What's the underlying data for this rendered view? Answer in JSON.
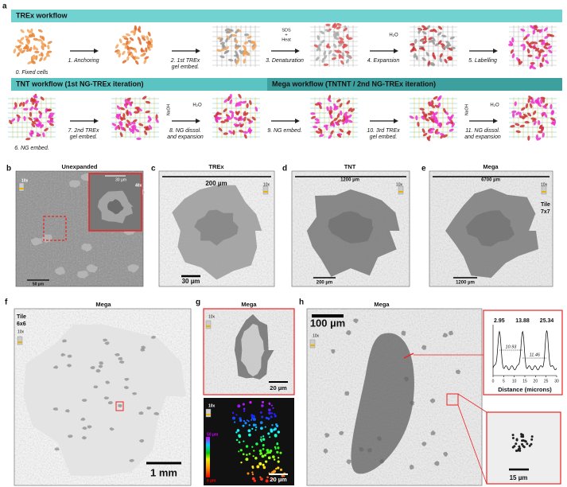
{
  "a": {
    "label": "a",
    "trex_title": "TREx workflow",
    "tnt_title": "TNT workflow (1st NG-TREx iteration)",
    "mega_title": "Mega workflow (TNTNT / 2nd NG-TREx iteration)",
    "steps": [
      [
        "0. Fixed cells"
      ],
      [
        "1. Anchoring"
      ],
      [
        "2.  1st TREx",
        "gel embed."
      ],
      [
        "3. Denaturation"
      ],
      [
        "4. Expansion"
      ],
      [
        "5. Labelling"
      ],
      [
        "6. NG embed."
      ],
      [
        "7. 2nd TREx",
        "gel embed."
      ],
      [
        "8. NG dissol.",
        "and expansion"
      ],
      [
        "9. NG embed."
      ],
      [
        "10. 3rd TREx",
        "gel embed."
      ],
      [
        "11. NG dissol.",
        "and expansion"
      ]
    ],
    "reagents": [
      "SDS",
      "+",
      "Heat",
      "H₂O",
      "NaOH",
      "H₂O",
      "NaOH",
      "H₂O"
    ]
  },
  "b": {
    "label": "b",
    "title": "Unexpanded",
    "objective": "10x",
    "inset_scale": "30 µm",
    "inset_objective": "40x",
    "scale": "50 µm"
  },
  "c": {
    "label": "c",
    "title": "TREx",
    "top_scale": "200 µm",
    "objective": "10x",
    "scale": "30 µm"
  },
  "d": {
    "label": "d",
    "title": "TNT",
    "top_scale": "1200 µm",
    "objective": "10x",
    "scale": "200 µm"
  },
  "e": {
    "label": "e",
    "title": "Mega",
    "top_scale": "6700 µm",
    "objective": "10x",
    "tile": [
      "Tile",
      "7x7"
    ],
    "scale": "1200 µm"
  },
  "f": {
    "label": "f",
    "title": "Mega",
    "tile": [
      "Tile",
      "6x6"
    ],
    "objective": "10x",
    "scale": "1 mm"
  },
  "g": {
    "label": "g",
    "title": "Mega",
    "objective": "10x",
    "scale": "20 µm",
    "objective2": "10x",
    "depth_max": "50 µm",
    "depth_min": "0 µm",
    "scale2": "20 µm"
  },
  "h": {
    "label": "h",
    "title": "Mega",
    "scale": "100 µm",
    "objective": "10x",
    "peaks": [
      2.95,
      13.88,
      25.34
    ],
    "spacings": [
      10.93,
      11.46
    ],
    "xticks": [
      0,
      5,
      10,
      15,
      20,
      25,
      30
    ],
    "xlabel": "Distance (microns)",
    "inset_scale": "15 µm"
  }
}
